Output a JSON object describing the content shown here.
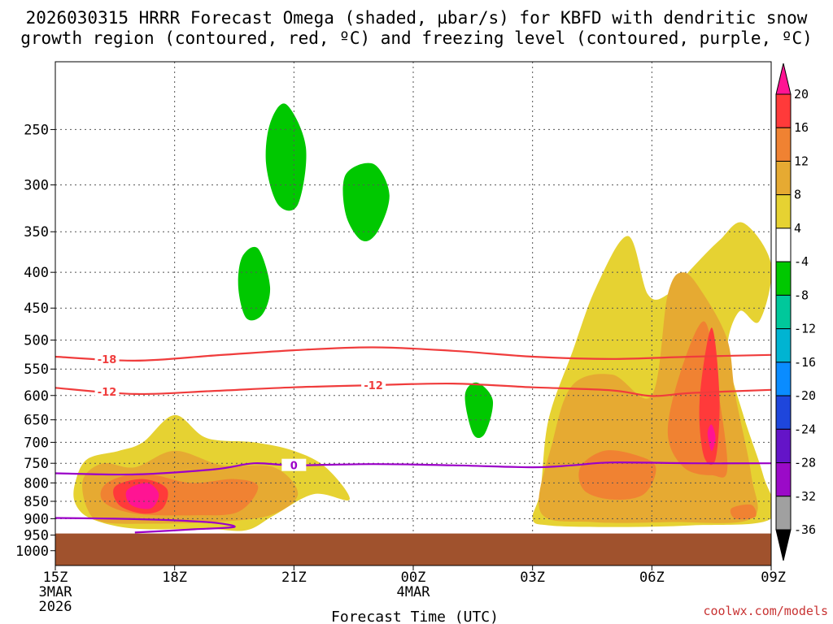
{
  "chart_data": {
    "type": "heatmap",
    "title_line1": "2026030315 HRRR Forecast Omega (shaded, µbar/s) for KBFD with dendritic snow",
    "title_line2": "growth region (contoured, red, ºC) and freezing level (contoured, purple, ºC)",
    "xlabel": "Forecast Time (UTC)",
    "ylabel": "",
    "x_ticks": [
      {
        "hour": 0,
        "label": "15Z",
        "sub1": "3MAR",
        "sub2": "2026"
      },
      {
        "hour": 3,
        "label": "18Z",
        "sub1": "",
        "sub2": ""
      },
      {
        "hour": 6,
        "label": "21Z",
        "sub1": "",
        "sub2": ""
      },
      {
        "hour": 9,
        "label": "00Z",
        "sub1": "4MAR",
        "sub2": ""
      },
      {
        "hour": 12,
        "label": "03Z",
        "sub1": "",
        "sub2": ""
      },
      {
        "hour": 15,
        "label": "06Z",
        "sub1": "",
        "sub2": ""
      },
      {
        "hour": 18,
        "label": "09Z",
        "sub1": "",
        "sub2": ""
      }
    ],
    "xlim_hours": [
      0,
      18
    ],
    "y_ticks": [
      250,
      300,
      350,
      400,
      450,
      500,
      550,
      600,
      650,
      700,
      750,
      800,
      850,
      900,
      950,
      1000
    ],
    "ylim_hPa": [
      200,
      1050
    ],
    "y_scale": "log-pressure",
    "ground_from_hPa": 945,
    "colorbar": {
      "labels": [
        "20",
        "16",
        "12",
        "8",
        "4",
        "-4",
        "-8",
        "-12",
        "-16",
        "-20",
        "-24",
        "-28",
        "-32",
        "-36"
      ],
      "colors": [
        "#ff1493",
        "#ff3a3a",
        "#f08232",
        "#e6aa32",
        "#e6d232",
        "#ffffff",
        "#00c800",
        "#00c89b",
        "#00b4d2",
        "#0a8cff",
        "#1e46dc",
        "#6414c8",
        "#9b0ac8",
        "#a0a0a0"
      ]
    },
    "red_contours": [
      {
        "label": "-18",
        "points": [
          [
            0,
            528
          ],
          [
            2,
            535
          ],
          [
            4,
            526
          ],
          [
            6,
            517
          ],
          [
            8,
            512
          ],
          [
            10,
            518
          ],
          [
            12,
            528
          ],
          [
            14,
            532
          ],
          [
            16,
            528
          ],
          [
            18,
            525
          ]
        ]
      },
      {
        "label": "-12",
        "points": [
          [
            0,
            585
          ],
          [
            2,
            597
          ],
          [
            4,
            591
          ],
          [
            6,
            584
          ],
          [
            8,
            580
          ],
          [
            10,
            577
          ],
          [
            12,
            584
          ],
          [
            14,
            590
          ],
          [
            15,
            601
          ],
          [
            16,
            595
          ],
          [
            18,
            589
          ]
        ]
      }
    ],
    "purple_contours": [
      {
        "label": "0",
        "points": [
          [
            0,
            775
          ],
          [
            2,
            778
          ],
          [
            4,
            765
          ],
          [
            5,
            750
          ],
          [
            6,
            755
          ],
          [
            8,
            752
          ],
          [
            10,
            755
          ],
          [
            12,
            760
          ],
          [
            13,
            755
          ],
          [
            14,
            748
          ],
          [
            16,
            750
          ],
          [
            18,
            750
          ]
        ]
      },
      {
        "label": "0",
        "points": [
          [
            0,
            898
          ],
          [
            1.5,
            900
          ],
          [
            3,
            905
          ],
          [
            4,
            912
          ],
          [
            4.5,
            925
          ],
          [
            3.5,
            932
          ],
          [
            2,
            942
          ]
        ]
      }
    ],
    "omega_regions": [
      {
        "category": "-4",
        "label": "",
        "points": [
          [
            1,
            490
          ],
          [
            1.4,
            420
          ],
          [
            2.2,
            425
          ],
          [
            2.6,
            380
          ],
          [
            3.4,
            370
          ],
          [
            4,
            400
          ],
          [
            4.2,
            340
          ],
          [
            5,
            300
          ],
          [
            5.4,
            230
          ],
          [
            6,
            200
          ],
          [
            7,
            230
          ],
          [
            7.6,
            300
          ],
          [
            8.2,
            295
          ],
          [
            9,
            280
          ],
          [
            10,
            260
          ],
          [
            11,
            240
          ],
          [
            11.3,
            300
          ],
          [
            11.1,
            350
          ],
          [
            11.4,
            470
          ],
          [
            10.6,
            500
          ],
          [
            10.6,
            560
          ],
          [
            11.5,
            600
          ],
          [
            11.3,
            680
          ],
          [
            10.5,
            690
          ],
          [
            10,
            650
          ],
          [
            9.8,
            560
          ],
          [
            9,
            525
          ],
          [
            8,
            515
          ],
          [
            7.6,
            540
          ],
          [
            7.3,
            640
          ],
          [
            6.8,
            600
          ],
          [
            6.3,
            510
          ],
          [
            5.6,
            500
          ],
          [
            5,
            495
          ],
          [
            4.3,
            480
          ],
          [
            3.5,
            470
          ],
          [
            3,
            480
          ],
          [
            2.6,
            520
          ],
          [
            2,
            540
          ],
          [
            1.5,
            560
          ],
          [
            1.2,
            580
          ],
          [
            0.9,
            550
          ]
        ]
      },
      {
        "category": "-4",
        "label": "",
        "points": [
          [
            15.6,
            215
          ],
          [
            16.0,
            205
          ],
          [
            16.5,
            225
          ],
          [
            16.2,
            240
          ],
          [
            15.7,
            235
          ]
        ]
      },
      {
        "category": "-4",
        "label": "",
        "points": [
          [
            17.7,
            640
          ],
          [
            18,
            620
          ],
          [
            18.4,
            720
          ],
          [
            17.7,
            700
          ]
        ]
      },
      {
        "category": "-8",
        "label": "",
        "points": [
          [
            5.4,
            245
          ],
          [
            5.8,
            230
          ],
          [
            6.3,
            265
          ],
          [
            6.1,
            320
          ],
          [
            5.6,
            320
          ],
          [
            5.3,
            280
          ]
        ]
      },
      {
        "category": "-8",
        "label": "",
        "points": [
          [
            7.3,
            290
          ],
          [
            8,
            280
          ],
          [
            8.4,
            310
          ],
          [
            8.1,
            350
          ],
          [
            7.7,
            360
          ],
          [
            7.3,
            330
          ]
        ]
      },
      {
        "category": "-8",
        "label": "",
        "points": [
          [
            4.7,
            380
          ],
          [
            5.1,
            370
          ],
          [
            5.4,
            420
          ],
          [
            5.2,
            460
          ],
          [
            4.8,
            465
          ],
          [
            4.6,
            420
          ]
        ]
      },
      {
        "category": "-8",
        "label": "",
        "points": [
          [
            10.3,
            600
          ],
          [
            10.6,
            575
          ],
          [
            11.0,
            610
          ],
          [
            10.8,
            680
          ],
          [
            10.5,
            680
          ]
        ]
      },
      {
        "category": "4",
        "label": "",
        "points": [
          [
            0.5,
            800
          ],
          [
            0.8,
            740
          ],
          [
            1.6,
            720
          ],
          [
            2.2,
            700
          ],
          [
            3,
            640
          ],
          [
            3.8,
            690
          ],
          [
            5,
            700
          ],
          [
            6,
            720
          ],
          [
            6.8,
            760
          ],
          [
            7.4,
            845
          ],
          [
            6.5,
            830
          ],
          [
            5.5,
            890
          ],
          [
            4.8,
            935
          ],
          [
            3.8,
            930
          ],
          [
            2,
            930
          ],
          [
            0.9,
            900
          ],
          [
            0.5,
            855
          ]
        ]
      },
      {
        "category": "4",
        "label": "",
        "points": [
          [
            12,
            900
          ],
          [
            12.2,
            820
          ],
          [
            12.4,
            650
          ],
          [
            13,
            520
          ],
          [
            13.6,
            420
          ],
          [
            14.4,
            355
          ],
          [
            14.9,
            430
          ],
          [
            15.4,
            430
          ],
          [
            16,
            395
          ],
          [
            16.7,
            360
          ],
          [
            17.3,
            340
          ],
          [
            18,
            390
          ],
          [
            17.7,
            470
          ],
          [
            17.2,
            455
          ],
          [
            16.9,
            520
          ],
          [
            17.3,
            640
          ],
          [
            17.8,
            780
          ],
          [
            18,
            900
          ],
          [
            16,
            920
          ],
          [
            14,
            925
          ],
          [
            12.4,
            920
          ]
        ]
      },
      {
        "category": "8",
        "label": "",
        "points": [
          [
            0.7,
            790
          ],
          [
            1.2,
            750
          ],
          [
            2,
            760
          ],
          [
            3,
            720
          ],
          [
            4.2,
            755
          ],
          [
            5.5,
            760
          ],
          [
            6.1,
            830
          ],
          [
            5.4,
            890
          ],
          [
            4,
            910
          ],
          [
            2.5,
            915
          ],
          [
            1.2,
            910
          ],
          [
            0.8,
            870
          ]
        ]
      },
      {
        "category": "8",
        "label": "",
        "points": [
          [
            12.2,
            880
          ],
          [
            12.5,
            700
          ],
          [
            13,
            580
          ],
          [
            14,
            560
          ],
          [
            15,
            600
          ],
          [
            15.4,
            430
          ],
          [
            15.8,
            400
          ],
          [
            16.3,
            430
          ],
          [
            16.9,
            500
          ],
          [
            17.1,
            600
          ],
          [
            17.5,
            780
          ],
          [
            17.5,
            900
          ],
          [
            15.5,
            910
          ],
          [
            13.5,
            910
          ]
        ]
      },
      {
        "category": "12",
        "label": "",
        "points": [
          [
            1.3,
            800
          ],
          [
            2.2,
            775
          ],
          [
            3.4,
            800
          ],
          [
            4.5,
            790
          ],
          [
            5.1,
            810
          ],
          [
            4.6,
            880
          ],
          [
            3.5,
            890
          ],
          [
            2,
            885
          ],
          [
            1.2,
            850
          ]
        ]
      },
      {
        "category": "12",
        "label": "",
        "points": [
          [
            13.2,
            760
          ],
          [
            13.8,
            720
          ],
          [
            14.6,
            730
          ],
          [
            15.1,
            760
          ],
          [
            14.8,
            830
          ],
          [
            14,
            845
          ],
          [
            13.3,
            820
          ]
        ]
      },
      {
        "category": "12",
        "label": "",
        "points": [
          [
            15.4,
            680
          ],
          [
            15.7,
            560
          ],
          [
            16.3,
            470
          ],
          [
            16.6,
            560
          ],
          [
            16.9,
            760
          ],
          [
            16.5,
            780
          ],
          [
            15.8,
            760
          ]
        ]
      },
      {
        "category": "12",
        "label": "",
        "points": [
          [
            17.0,
            870
          ],
          [
            17.5,
            860
          ],
          [
            17.6,
            895
          ],
          [
            17.1,
            900
          ]
        ]
      },
      {
        "category": "16",
        "label": "",
        "points": [
          [
            1.5,
            810
          ],
          [
            2.2,
            790
          ],
          [
            2.8,
            815
          ],
          [
            2.7,
            870
          ],
          [
            2.2,
            885
          ],
          [
            1.6,
            860
          ]
        ]
      },
      {
        "category": "16",
        "label": "",
        "points": [
          [
            16.2,
            610
          ],
          [
            16.5,
            480
          ],
          [
            16.7,
            600
          ],
          [
            16.6,
            740
          ],
          [
            16.3,
            730
          ]
        ]
      },
      {
        "category": "20",
        "label": "",
        "points": [
          [
            1.8,
            820
          ],
          [
            2.3,
            800
          ],
          [
            2.6,
            830
          ],
          [
            2.4,
            870
          ],
          [
            1.9,
            860
          ]
        ]
      },
      {
        "category": "20",
        "label": "",
        "points": [
          [
            16.4,
            680
          ],
          [
            16.5,
            660
          ],
          [
            16.6,
            690
          ],
          [
            16.5,
            720
          ]
        ]
      }
    ],
    "watermark": "coolwx.com/models"
  }
}
